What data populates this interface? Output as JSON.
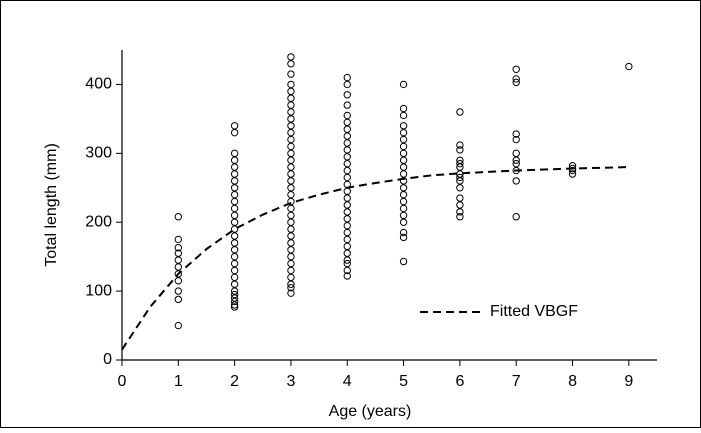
{
  "chart_data": {
    "type": "scatter",
    "xlabel": "Age (years)",
    "ylabel": "Total length (mm)",
    "xlim": [
      0,
      9.5
    ],
    "ylim": [
      0,
      450
    ],
    "xticks": [
      0,
      1,
      2,
      3,
      4,
      5,
      6,
      7,
      8,
      9
    ],
    "yticks": [
      0,
      100,
      200,
      300,
      400
    ],
    "legend": "lower right",
    "series": [
      {
        "type": "scatter",
        "color": "#000000",
        "x": [
          1,
          1,
          1,
          1,
          1,
          1,
          1,
          1,
          1,
          1,
          1,
          2,
          2,
          2,
          2,
          2,
          2,
          2,
          2,
          2,
          2,
          2,
          2,
          2,
          2,
          2,
          2,
          2,
          2,
          2,
          2,
          2,
          2,
          2,
          2,
          2,
          2,
          2,
          2,
          3,
          3,
          3,
          3,
          3,
          3,
          3,
          3,
          3,
          3,
          3,
          3,
          3,
          3,
          3,
          3,
          3,
          3,
          3,
          3,
          3,
          3,
          3,
          3,
          3,
          3,
          3,
          3,
          3,
          3,
          3,
          3,
          3,
          3,
          3,
          4,
          4,
          4,
          4,
          4,
          4,
          4,
          4,
          4,
          4,
          4,
          4,
          4,
          4,
          4,
          4,
          4,
          4,
          4,
          4,
          4,
          4,
          4,
          4,
          4,
          4,
          4,
          4,
          4,
          5,
          5,
          5,
          5,
          5,
          5,
          5,
          5,
          5,
          5,
          5,
          5,
          5,
          5,
          5,
          5,
          5,
          5,
          5,
          5,
          5,
          6,
          6,
          6,
          6,
          6,
          6,
          6,
          6,
          6,
          6,
          6,
          6,
          6,
          6,
          7,
          7,
          7,
          7,
          7,
          7,
          7,
          7,
          7,
          7,
          7,
          8,
          8,
          8,
          8,
          9
        ],
        "values": [
          208,
          175,
          163,
          155,
          145,
          135,
          125,
          115,
          100,
          88,
          50,
          340,
          330,
          300,
          290,
          280,
          270,
          260,
          250,
          240,
          230,
          220,
          210,
          200,
          190,
          180,
          170,
          160,
          150,
          140,
          130,
          120,
          110,
          100,
          95,
          90,
          85,
          80,
          77,
          440,
          430,
          415,
          400,
          390,
          380,
          370,
          360,
          350,
          340,
          330,
          320,
          310,
          300,
          290,
          280,
          270,
          260,
          250,
          240,
          230,
          220,
          210,
          200,
          190,
          180,
          170,
          160,
          150,
          140,
          130,
          120,
          110,
          105,
          97,
          410,
          400,
          385,
          370,
          355,
          345,
          335,
          325,
          315,
          305,
          295,
          285,
          275,
          265,
          255,
          245,
          235,
          225,
          215,
          205,
          195,
          185,
          175,
          165,
          155,
          145,
          140,
          130,
          122,
          400,
          365,
          355,
          340,
          330,
          320,
          310,
          300,
          290,
          280,
          270,
          260,
          250,
          240,
          230,
          220,
          210,
          200,
          185,
          178,
          143,
          360,
          312,
          305,
          290,
          285,
          280,
          270,
          265,
          260,
          250,
          235,
          225,
          215,
          208,
          422,
          408,
          403,
          328,
          320,
          300,
          290,
          285,
          275,
          260,
          208,
          282,
          278,
          275,
          270,
          426
        ]
      },
      {
        "type": "line",
        "name": "Fitted VBGF",
        "color": "#000000",
        "dashed": true,
        "x": [
          0,
          0.5,
          1,
          1.5,
          2,
          2.5,
          3,
          3.5,
          4,
          4.5,
          5,
          5.5,
          6,
          7,
          8,
          9
        ],
        "values": [
          15,
          77,
          125,
          161,
          190,
          211,
          228,
          240,
          250,
          257,
          263,
          268,
          271,
          275,
          278,
          280
        ]
      }
    ]
  }
}
